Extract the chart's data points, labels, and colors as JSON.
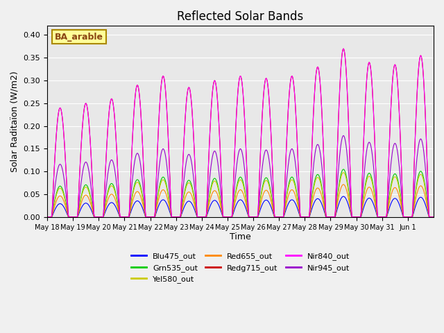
{
  "title": "Reflected Solar Bands",
  "xlabel": "Time",
  "ylabel": "Solar Raditaïon (W/m2)",
  "ylim": [
    0.0,
    0.42
  ],
  "yticks": [
    0.0,
    0.05,
    0.1,
    0.15,
    0.2,
    0.25,
    0.3,
    0.35,
    0.4
  ],
  "bg_color": "#e8e8e8",
  "plot_bg_color": "#e8e8e8",
  "annotation_text": "BA_arable",
  "annotation_color": "#8B4513",
  "annotation_bg": "#ffff99",
  "series": {
    "Blu475_out": {
      "color": "#0000ff",
      "scale": 0.038
    },
    "Grn535_out": {
      "color": "#00cc00",
      "scale": 0.088
    },
    "Yel580_out": {
      "color": "#cccc00",
      "scale": 0.082
    },
    "Red655_out": {
      "color": "#ff8800",
      "scale": 0.06
    },
    "Redg715_out": {
      "color": "#cc0000",
      "scale": 0.31
    },
    "Nir840_out": {
      "color": "#ff00ff",
      "scale": 0.31
    },
    "Nir945_out": {
      "color": "#9900cc",
      "scale": 0.15
    }
  },
  "day_peaks": [
    0.24,
    0.25,
    0.26,
    0.29,
    0.31,
    0.285,
    0.3,
    0.31,
    0.305,
    0.31,
    0.33,
    0.37,
    0.34,
    0.335,
    0.355
  ],
  "start_day": 18,
  "n_days": 15,
  "points_per_day": 48,
  "legend_ncol": 3
}
